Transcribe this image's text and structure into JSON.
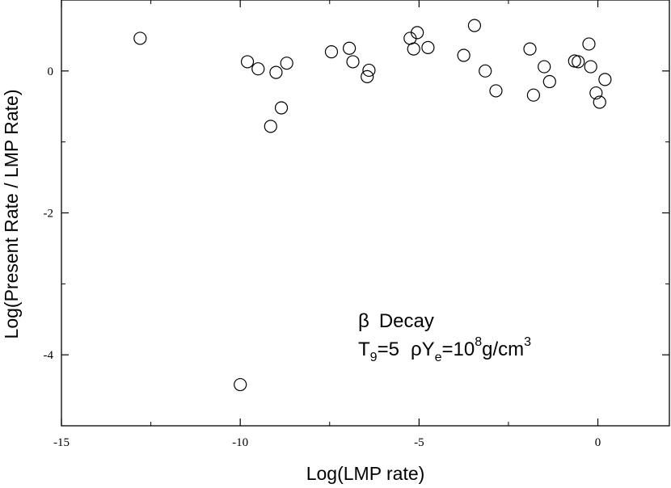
{
  "chart_data": {
    "type": "scatter",
    "xlabel": "Log(LMP rate)",
    "ylabel": "Log(Present Rate / LMP Rate)",
    "xlim": [
      -15,
      2
    ],
    "ylim": [
      -5,
      1
    ],
    "x_ticks": [
      -15,
      -10,
      -5,
      0
    ],
    "y_ticks": [
      -4,
      -2,
      0
    ],
    "grid": false,
    "marker": "open-circle",
    "points": [
      {
        "x": -12.8,
        "y": 0.46
      },
      {
        "x": -9.8,
        "y": 0.13
      },
      {
        "x": -9.5,
        "y": 0.03
      },
      {
        "x": -9.15,
        "y": -0.78
      },
      {
        "x": -9.0,
        "y": -0.02
      },
      {
        "x": -8.85,
        "y": -0.52
      },
      {
        "x": -8.7,
        "y": 0.11
      },
      {
        "x": -7.45,
        "y": 0.27
      },
      {
        "x": -6.95,
        "y": 0.32
      },
      {
        "x": -6.85,
        "y": 0.13
      },
      {
        "x": -6.45,
        "y": -0.08
      },
      {
        "x": -6.4,
        "y": 0.01
      },
      {
        "x": -5.25,
        "y": 0.46
      },
      {
        "x": -5.15,
        "y": 0.31
      },
      {
        "x": -5.05,
        "y": 0.54
      },
      {
        "x": -4.75,
        "y": 0.33
      },
      {
        "x": -3.75,
        "y": 0.22
      },
      {
        "x": -3.45,
        "y": 0.64
      },
      {
        "x": -3.15,
        "y": 0.0
      },
      {
        "x": -2.85,
        "y": -0.28
      },
      {
        "x": -1.9,
        "y": 0.31
      },
      {
        "x": -1.8,
        "y": -0.34
      },
      {
        "x": -1.5,
        "y": 0.06
      },
      {
        "x": -1.35,
        "y": -0.15
      },
      {
        "x": -0.65,
        "y": 0.14
      },
      {
        "x": -0.55,
        "y": 0.13
      },
      {
        "x": -0.25,
        "y": 0.38
      },
      {
        "x": -0.2,
        "y": 0.06
      },
      {
        "x": -0.05,
        "y": -0.31
      },
      {
        "x": 0.05,
        "y": -0.44
      },
      {
        "x": 0.2,
        "y": -0.12
      },
      {
        "x": -10.0,
        "y": -4.42
      }
    ],
    "annotations": {
      "beta": "β",
      "decay": "Decay",
      "T": "T",
      "T_sub": "9",
      "T_val": "=5",
      "rho": "ρ",
      "Y": "Y",
      "Y_sub": "e",
      "eq_ten": "=10",
      "exp8": "8",
      "units": "g/cm",
      "exp3": "3"
    }
  }
}
